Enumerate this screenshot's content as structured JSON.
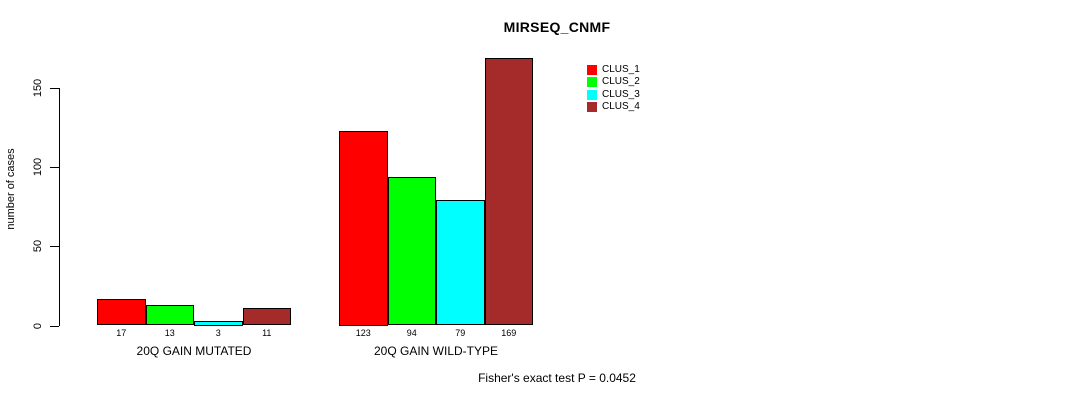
{
  "chart_data": {
    "type": "bar",
    "title": "MIRSEQ_CNMF",
    "ylabel": "number of cases",
    "xlabel": "",
    "ylim": [
      0,
      170
    ],
    "yticks": [
      0,
      50,
      100,
      150
    ],
    "grid": false,
    "legend_position": "top-right-inside",
    "categories": [
      "20Q GAIN MUTATED",
      "20Q GAIN WILD-TYPE"
    ],
    "series": [
      {
        "name": "CLUS_1",
        "color": "#ff0000",
        "values": [
          17,
          123
        ]
      },
      {
        "name": "CLUS_2",
        "color": "#00ff00",
        "values": [
          13,
          94
        ]
      },
      {
        "name": "CLUS_3",
        "color": "#00ffff",
        "values": [
          3,
          79
        ]
      },
      {
        "name": "CLUS_4",
        "color": "#a52a2a",
        "values": [
          11,
          169
        ]
      }
    ],
    "caption": "Fisher's exact test P = 0.0452",
    "axis_color": "#000000",
    "text_color": "#000000",
    "background": "#ffffff"
  }
}
